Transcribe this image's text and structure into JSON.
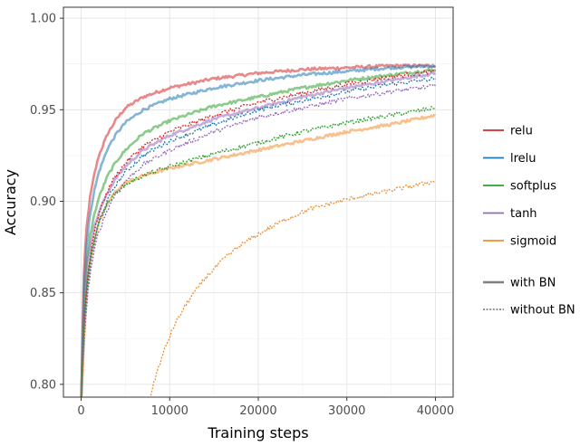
{
  "chart_data": {
    "type": "line",
    "title": "",
    "xlabel": "Training steps",
    "ylabel": "Accuracy",
    "xlim": [
      -2000,
      42000
    ],
    "ylim": [
      0.793,
      1.006
    ],
    "xticks": [
      0,
      10000,
      20000,
      30000,
      40000
    ],
    "xtick_labels": [
      "0",
      "10000",
      "20000",
      "30000",
      "40000"
    ],
    "yticks": [
      0.8,
      0.85,
      0.9,
      0.95,
      1.0
    ],
    "ytick_labels": [
      "0.80",
      "0.85",
      "0.90",
      "0.95",
      "1.00"
    ],
    "grid": true,
    "legend_placement": "right",
    "colors": {
      "relu": "#d62728",
      "lrelu": "#1f77b4",
      "softplus": "#2ca02c",
      "tanh": "#9467bd",
      "sigmoid": "#f28e2b"
    },
    "legend_activation": [
      {
        "key": "relu",
        "label": "relu"
      },
      {
        "key": "lrelu",
        "label": "lrelu"
      },
      {
        "key": "softplus",
        "label": "softplus"
      },
      {
        "key": "tanh",
        "label": "tanh"
      },
      {
        "key": "sigmoid",
        "label": "sigmoid"
      }
    ],
    "legend_bn": [
      {
        "key": "bn",
        "label": "with BN",
        "style": "solid"
      },
      {
        "key": "nobn",
        "label": "without BN",
        "style": "dotted"
      }
    ],
    "series": [
      {
        "activation": "relu",
        "bn": true,
        "x": [
          0,
          300,
          600,
          1000,
          1500,
          2000,
          3000,
          4000,
          5000,
          7000,
          10000,
          15000,
          20000,
          25000,
          30000,
          35000,
          40000
        ],
        "y": [
          0.79,
          0.86,
          0.885,
          0.902,
          0.915,
          0.925,
          0.937,
          0.945,
          0.951,
          0.957,
          0.962,
          0.967,
          0.97,
          0.972,
          0.973,
          0.974,
          0.974
        ]
      },
      {
        "activation": "lrelu",
        "bn": true,
        "x": [
          0,
          300,
          600,
          1000,
          1500,
          2000,
          3000,
          4000,
          5000,
          7000,
          10000,
          15000,
          20000,
          25000,
          30000,
          35000,
          40000
        ],
        "y": [
          0.79,
          0.85,
          0.875,
          0.893,
          0.906,
          0.916,
          0.929,
          0.937,
          0.943,
          0.95,
          0.956,
          0.962,
          0.966,
          0.969,
          0.971,
          0.973,
          0.974
        ]
      },
      {
        "activation": "softplus",
        "bn": true,
        "x": [
          0,
          300,
          600,
          1000,
          1500,
          2000,
          3000,
          4000,
          5000,
          7000,
          10000,
          15000,
          20000,
          25000,
          30000,
          35000,
          40000
        ],
        "y": [
          0.79,
          0.84,
          0.865,
          0.881,
          0.893,
          0.902,
          0.914,
          0.922,
          0.928,
          0.937,
          0.944,
          0.952,
          0.957,
          0.962,
          0.966,
          0.969,
          0.972
        ]
      },
      {
        "activation": "tanh",
        "bn": true,
        "x": [
          0,
          300,
          600,
          1000,
          1500,
          2000,
          3000,
          4000,
          5000,
          7000,
          10000,
          15000,
          20000,
          25000,
          30000,
          35000,
          40000
        ],
        "y": [
          0.79,
          0.84,
          0.862,
          0.876,
          0.886,
          0.894,
          0.905,
          0.913,
          0.919,
          0.928,
          0.936,
          0.945,
          0.951,
          0.957,
          0.962,
          0.966,
          0.97
        ]
      },
      {
        "activation": "sigmoid",
        "bn": true,
        "x": [
          0,
          300,
          600,
          1000,
          1500,
          2000,
          3000,
          4000,
          5000,
          7000,
          10000,
          15000,
          20000,
          25000,
          30000,
          35000,
          40000
        ],
        "y": [
          0.79,
          0.82,
          0.848,
          0.866,
          0.879,
          0.888,
          0.899,
          0.906,
          0.91,
          0.914,
          0.918,
          0.923,
          0.928,
          0.933,
          0.938,
          0.942,
          0.947
        ]
      },
      {
        "activation": "relu",
        "bn": false,
        "x": [
          0,
          400,
          800,
          1200,
          1800,
          2500,
          3500,
          5000,
          7000,
          10000,
          15000,
          20000,
          25000,
          30000,
          35000,
          40000
        ],
        "y": [
          0.79,
          0.84,
          0.862,
          0.876,
          0.89,
          0.9,
          0.911,
          0.921,
          0.93,
          0.938,
          0.947,
          0.954,
          0.959,
          0.964,
          0.968,
          0.971
        ]
      },
      {
        "activation": "lrelu",
        "bn": false,
        "x": [
          0,
          400,
          800,
          1200,
          1800,
          2500,
          3500,
          5000,
          7000,
          10000,
          15000,
          20000,
          25000,
          30000,
          35000,
          40000
        ],
        "y": [
          0.79,
          0.835,
          0.857,
          0.871,
          0.885,
          0.895,
          0.906,
          0.916,
          0.925,
          0.933,
          0.942,
          0.95,
          0.955,
          0.96,
          0.964,
          0.967
        ]
      },
      {
        "activation": "tanh",
        "bn": false,
        "x": [
          0,
          400,
          800,
          1200,
          1800,
          2500,
          3500,
          5000,
          7000,
          10000,
          15000,
          20000,
          25000,
          30000,
          35000,
          40000
        ],
        "y": [
          0.79,
          0.83,
          0.852,
          0.866,
          0.88,
          0.89,
          0.901,
          0.911,
          0.92,
          0.928,
          0.938,
          0.946,
          0.951,
          0.956,
          0.96,
          0.963
        ]
      },
      {
        "activation": "softplus",
        "bn": false,
        "x": [
          0,
          300,
          700,
          1200,
          2000,
          3000,
          4000,
          5000,
          7000,
          10000,
          15000,
          20000,
          25000,
          30000,
          35000,
          40000
        ],
        "y": [
          0.79,
          0.83,
          0.857,
          0.874,
          0.889,
          0.899,
          0.905,
          0.909,
          0.914,
          0.919,
          0.926,
          0.932,
          0.938,
          0.943,
          0.947,
          0.951
        ]
      },
      {
        "activation": "sigmoid",
        "bn": false,
        "x": [
          7800,
          8500,
          9500,
          10500,
          12000,
          14000,
          16000,
          18000,
          20000,
          23000,
          26000,
          30000,
          34000,
          37000,
          40000
        ],
        "y": [
          0.793,
          0.806,
          0.82,
          0.832,
          0.845,
          0.858,
          0.868,
          0.876,
          0.882,
          0.89,
          0.896,
          0.901,
          0.905,
          0.908,
          0.911
        ]
      }
    ]
  }
}
